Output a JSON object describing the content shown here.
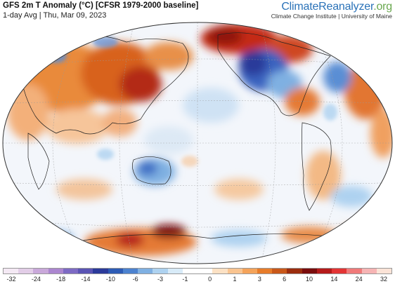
{
  "header": {
    "title": "GFS 2m T Anomaly (°C) [CFSR 1979-2000 baseline]",
    "subtitle": "1-day Avg | Thu, Mar 09, 2023"
  },
  "brand": {
    "name_part1": "Climate",
    "name_part2": "Reanalyzer",
    "name_part3": ".org",
    "sub": "Climate Change Institute | University of Maine"
  },
  "colorbar": {
    "colors": [
      "#f4e9f4",
      "#e2cde7",
      "#c9a8da",
      "#ab86cf",
      "#7d6ac4",
      "#5a54b4",
      "#2b3a9a",
      "#2d5bb5",
      "#4c82cf",
      "#7fb0e2",
      "#aed2f0",
      "#d8ebf8",
      "#ffffff",
      "#ffffff",
      "#fce1c4",
      "#f9c490",
      "#f4a35a",
      "#e77c2a",
      "#c9581a",
      "#9b2d0e",
      "#7a0c0c",
      "#b51a1a",
      "#e33434",
      "#f07a7a",
      "#f6b4b4",
      "#fbe3d7"
    ],
    "tick_labels": [
      "-32",
      "-24",
      "-18",
      "-14",
      "-10",
      "-6",
      "-3",
      "-1",
      "0",
      "1",
      "3",
      "6",
      "10",
      "14",
      "24",
      "32"
    ]
  }
}
